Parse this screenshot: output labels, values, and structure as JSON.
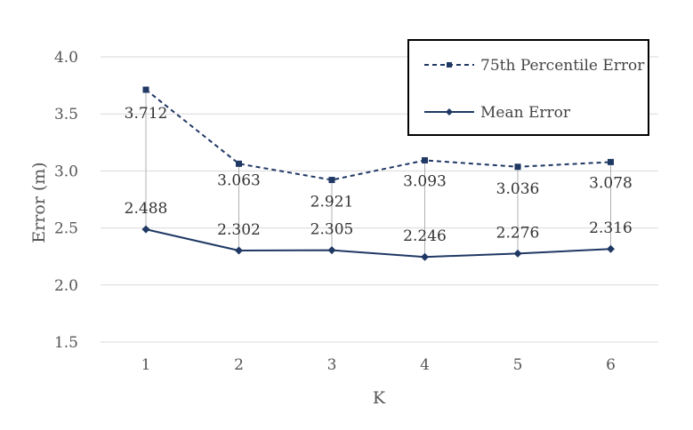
{
  "chart_data": {
    "type": "line",
    "title": "",
    "xlabel": "K",
    "ylabel": "Error (m)",
    "categories": [
      "1",
      "2",
      "3",
      "4",
      "5",
      "6"
    ],
    "ylim": [
      1.5,
      4.0
    ],
    "yticks": [
      "1.5",
      "2.0",
      "2.5",
      "3.0",
      "3.5",
      "4.0"
    ],
    "grid": true,
    "legend_position": "top-right",
    "series": [
      {
        "name": "75th Percentile Error",
        "values": [
          3.712,
          3.063,
          2.921,
          3.093,
          3.036,
          3.078
        ],
        "labels": [
          "3.712",
          "3.063",
          "2.921",
          "3.093",
          "3.036",
          "3.078"
        ],
        "line_style": "dashed",
        "marker": "square",
        "color": "#1f3864"
      },
      {
        "name": "Mean Error",
        "values": [
          2.488,
          2.302,
          2.305,
          2.246,
          2.276,
          2.316
        ],
        "labels": [
          "2.488",
          "2.302",
          "2.305",
          "2.246",
          "2.276",
          "2.316"
        ],
        "line_style": "solid",
        "marker": "diamond",
        "color": "#1f3864"
      }
    ]
  }
}
